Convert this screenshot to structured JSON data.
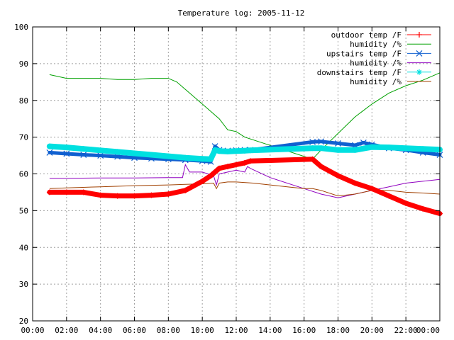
{
  "chart_data": {
    "type": "line",
    "title": "Temperature log: 2005-11-12",
    "xlabel": "",
    "ylabel": "",
    "x_unit": "time of day",
    "xlim": [
      "00:00",
      "00:00"
    ],
    "ylim": [
      20,
      100
    ],
    "x_ticks": [
      "00:00",
      "02:00",
      "04:00",
      "06:00",
      "08:00",
      "10:00",
      "12:00",
      "14:00",
      "16:00",
      "18:00",
      "20:00",
      "22:00",
      "00:00"
    ],
    "y_ticks": [
      20,
      30,
      40,
      50,
      60,
      70,
      80,
      90,
      100
    ],
    "grid": true,
    "legend_position": "top-right",
    "series": [
      {
        "name": "outdoor temp /F",
        "color": "#ff0000",
        "marker": "plus",
        "x": [
          "01:00",
          "02:00",
          "03:00",
          "04:00",
          "05:00",
          "06:00",
          "07:00",
          "08:00",
          "09:00",
          "10:00",
          "10:30",
          "11:00",
          "11:30",
          "12:00",
          "12:30",
          "12:50",
          "16:30",
          "17:00",
          "18:00",
          "19:00",
          "20:00",
          "21:00",
          "22:00",
          "23:00",
          "24:00"
        ],
        "values": [
          55,
          55,
          55,
          54.2,
          54,
          54,
          54.2,
          54.5,
          55.5,
          58,
          59.5,
          61.5,
          62,
          62.5,
          63,
          63.5,
          64,
          62,
          59.5,
          57.5,
          56,
          54,
          52,
          50.5,
          49.2
        ]
      },
      {
        "name": "humidity /%",
        "color": "#00a000",
        "marker": "none",
        "x": [
          "01:00",
          "01:30",
          "02:00",
          "03:00",
          "04:00",
          "05:00",
          "06:00",
          "07:00",
          "08:00",
          "08:30",
          "09:00",
          "10:00",
          "11:00",
          "11:30",
          "12:00",
          "12:30",
          "16:30",
          "17:00",
          "18:00",
          "19:00",
          "20:00",
          "21:00",
          "22:00",
          "23:00",
          "24:00"
        ],
        "values": [
          87,
          86.5,
          86,
          86,
          86,
          85.7,
          85.7,
          86,
          86,
          85,
          83,
          79,
          75,
          72,
          71.5,
          70,
          64,
          66.5,
          71,
          75.5,
          79,
          82,
          84,
          85.5,
          87.5
        ]
      },
      {
        "name": "upstairs temp /F",
        "color": "#1060d0",
        "marker": "x",
        "x": [
          "01:00",
          "02:00",
          "03:00",
          "04:00",
          "05:00",
          "06:00",
          "07:00",
          "08:00",
          "09:00",
          "10:00",
          "10:30",
          "10:45",
          "11:00",
          "11:30",
          "12:00",
          "12:30",
          "12:50",
          "16:30",
          "17:00",
          "18:00",
          "19:00",
          "19:30",
          "20:00",
          "21:00",
          "22:00",
          "23:00",
          "24:00"
        ],
        "values": [
          65.8,
          65.5,
          65.2,
          65,
          64.7,
          64.4,
          64.2,
          64,
          63.8,
          63.5,
          63.3,
          67.5,
          66.5,
          66.3,
          66.4,
          66.5,
          66.5,
          68.7,
          68.8,
          68.3,
          67.8,
          68.5,
          68,
          67,
          66.5,
          65.8,
          65.2
        ]
      },
      {
        "name": "humidity /%",
        "color": "#9000c0",
        "marker": "none",
        "x": [
          "01:00",
          "02:00",
          "04:00",
          "06:00",
          "08:00",
          "08:50",
          "09:00",
          "09:15",
          "10:00",
          "10:40",
          "10:50",
          "11:00",
          "11:30",
          "12:00",
          "12:30",
          "12:40",
          "12:50",
          "14:00",
          "16:00",
          "17:00",
          "18:00",
          "19:00",
          "20:00",
          "21:00",
          "22:00",
          "23:00",
          "24:00"
        ],
        "values": [
          58.8,
          58.8,
          58.9,
          58.9,
          59,
          59,
          62.5,
          60.5,
          60.5,
          59.5,
          57,
          60,
          60.5,
          61,
          60.5,
          62,
          61.5,
          59,
          56,
          54.5,
          53.5,
          54.5,
          55.5,
          56.5,
          57.5,
          58,
          58.5
        ]
      },
      {
        "name": "downstairs temp /F",
        "color": "#00e0e0",
        "marker": "star",
        "x": [
          "01:00",
          "02:00",
          "03:00",
          "04:00",
          "05:00",
          "06:00",
          "07:00",
          "08:00",
          "09:00",
          "10:00",
          "10:30",
          "10:45",
          "11:00",
          "11:30",
          "12:00",
          "12:30",
          "12:50",
          "16:30",
          "17:00",
          "18:00",
          "19:00",
          "20:00",
          "21:00",
          "22:00",
          "23:00",
          "24:00"
        ],
        "values": [
          67.5,
          67.2,
          66.8,
          66.4,
          66,
          65.6,
          65.2,
          64.8,
          64.4,
          64.1,
          64,
          66.5,
          66.2,
          66.1,
          66.2,
          66.3,
          66.4,
          67,
          67,
          66.5,
          66.5,
          67.3,
          67.2,
          67,
          66.8,
          66.6
        ]
      },
      {
        "name": "humidity /%",
        "color": "#a04000",
        "marker": "none",
        "x": [
          "01:00",
          "02:00",
          "04:00",
          "06:00",
          "08:00",
          "10:00",
          "10:40",
          "10:50",
          "11:00",
          "11:30",
          "12:00",
          "13:00",
          "14:00",
          "15:00",
          "16:00",
          "16:30",
          "17:00",
          "18:00",
          "19:00",
          "20:00",
          "21:00",
          "22:00",
          "23:00",
          "24:00"
        ],
        "values": [
          56,
          56.2,
          56.5,
          56.8,
          57,
          57.3,
          57.5,
          56,
          57.5,
          57.8,
          57.8,
          57.5,
          57,
          56.5,
          56,
          56,
          55.5,
          54,
          54.5,
          55.5,
          55.5,
          55,
          54.8,
          54.5
        ]
      }
    ]
  }
}
